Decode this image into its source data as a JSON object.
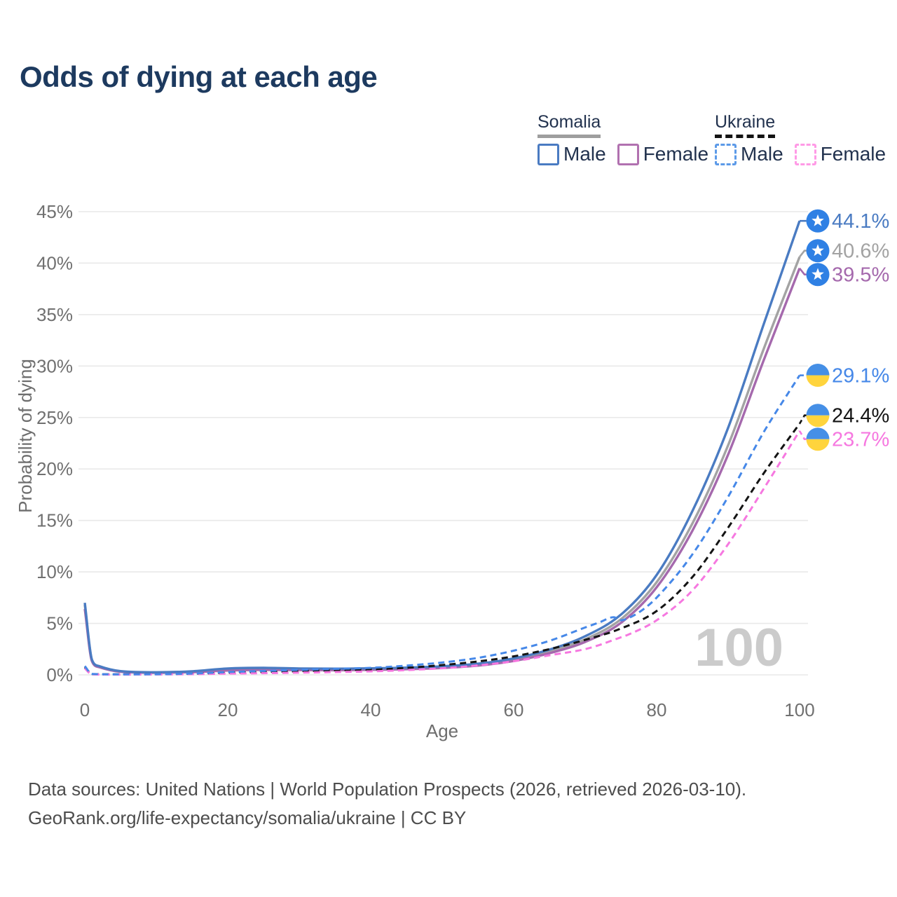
{
  "title": "Odds of dying at each age",
  "colors": {
    "title_text": "#1d3a5f",
    "legend_text": "#22324e",
    "axis_text": "#707070",
    "grid": "#e9e9e9",
    "watermark": "#cbcbcb",
    "footer_text": "#4d4d4d",
    "somalia_flag_blue": "#2f80e4",
    "ukraine_flag_blue": "#458fe6",
    "ukraine_flag_yellow": "#ffd43d"
  },
  "legend": {
    "groups": [
      {
        "name": "Somalia",
        "line_style": "solid",
        "line_color": "#9e9e9e",
        "items": [
          {
            "label": "Male",
            "color": "#4a7bc2",
            "style": "solid"
          },
          {
            "label": "Female",
            "color": "#b171b0",
            "style": "solid"
          }
        ]
      },
      {
        "name": "Ukraine",
        "line_style": "dashed",
        "line_color": "#141414",
        "items": [
          {
            "label": "Male",
            "color": "#5c9ae8",
            "style": "dashed"
          },
          {
            "label": "Female",
            "color": "#ff9ae6",
            "style": "dashed"
          }
        ]
      }
    ]
  },
  "chart_data": {
    "type": "line",
    "title": "Odds of dying at each age",
    "xlabel": "Age",
    "ylabel": "Probability of dying",
    "xlim": [
      0,
      100
    ],
    "ylim": [
      0,
      45
    ],
    "x_ticks": [
      0,
      20,
      40,
      60,
      80,
      100
    ],
    "y_ticks": [
      0,
      5,
      10,
      15,
      20,
      25,
      30,
      35,
      40,
      45
    ],
    "y_tick_suffix": "%",
    "grid": "horizontal-only",
    "legend_position": "top-right",
    "watermark": "100",
    "series": [
      {
        "id": "somalia-total",
        "name": "Somalia",
        "color": "#a3a3a3",
        "dash": false,
        "flag": "somalia",
        "end_label": "40.6%",
        "points": [
          [
            0,
            6.8
          ],
          [
            1,
            1.4
          ],
          [
            2,
            0.8
          ],
          [
            5,
            0.33
          ],
          [
            10,
            0.22
          ],
          [
            15,
            0.3
          ],
          [
            20,
            0.52
          ],
          [
            25,
            0.58
          ],
          [
            30,
            0.54
          ],
          [
            35,
            0.52
          ],
          [
            40,
            0.56
          ],
          [
            45,
            0.62
          ],
          [
            50,
            0.74
          ],
          [
            55,
            0.97
          ],
          [
            60,
            1.45
          ],
          [
            65,
            2.25
          ],
          [
            70,
            3.45
          ],
          [
            75,
            5.4
          ],
          [
            80,
            9.0
          ],
          [
            85,
            14.7
          ],
          [
            90,
            22.3
          ],
          [
            95,
            31.7
          ],
          [
            100,
            40.6
          ]
        ]
      },
      {
        "id": "somalia-female",
        "name": "Somalia Female",
        "color": "#a569ad",
        "dash": false,
        "flag": "somalia",
        "end_label": "39.5%",
        "points": [
          [
            0,
            6.4
          ],
          [
            1,
            1.33
          ],
          [
            2,
            0.75
          ],
          [
            5,
            0.3
          ],
          [
            10,
            0.2
          ],
          [
            15,
            0.26
          ],
          [
            20,
            0.42
          ],
          [
            25,
            0.48
          ],
          [
            30,
            0.46
          ],
          [
            35,
            0.45
          ],
          [
            40,
            0.49
          ],
          [
            45,
            0.55
          ],
          [
            50,
            0.67
          ],
          [
            55,
            0.9
          ],
          [
            60,
            1.35
          ],
          [
            65,
            2.1
          ],
          [
            70,
            3.2
          ],
          [
            75,
            5.05
          ],
          [
            80,
            8.5
          ],
          [
            85,
            14.0
          ],
          [
            90,
            21.4
          ],
          [
            95,
            30.6
          ],
          [
            100,
            39.5
          ]
        ]
      },
      {
        "id": "somalia-male",
        "name": "Somalia Male",
        "color": "#4a7bc2",
        "dash": false,
        "flag": "somalia",
        "end_label": "44.1%",
        "points": [
          [
            0,
            7.0
          ],
          [
            1,
            1.48
          ],
          [
            2,
            0.85
          ],
          [
            5,
            0.36
          ],
          [
            10,
            0.25
          ],
          [
            15,
            0.35
          ],
          [
            20,
            0.62
          ],
          [
            25,
            0.68
          ],
          [
            30,
            0.62
          ],
          [
            35,
            0.6
          ],
          [
            40,
            0.63
          ],
          [
            45,
            0.7
          ],
          [
            50,
            0.83
          ],
          [
            55,
            1.08
          ],
          [
            60,
            1.6
          ],
          [
            65,
            2.45
          ],
          [
            70,
            3.75
          ],
          [
            75,
            5.85
          ],
          [
            80,
            9.7
          ],
          [
            85,
            15.9
          ],
          [
            90,
            24.0
          ],
          [
            95,
            34.1
          ],
          [
            100,
            44.1
          ]
        ]
      },
      {
        "id": "ukraine-total",
        "name": "Ukraine",
        "color": "#141414",
        "dash": true,
        "flag": "ukraine",
        "end_label": "24.4%",
        "points": [
          [
            0,
            0.75
          ],
          [
            1,
            0.07
          ],
          [
            5,
            0.05
          ],
          [
            10,
            0.06
          ],
          [
            15,
            0.1
          ],
          [
            20,
            0.2
          ],
          [
            25,
            0.28
          ],
          [
            30,
            0.36
          ],
          [
            35,
            0.44
          ],
          [
            40,
            0.52
          ],
          [
            45,
            0.68
          ],
          [
            50,
            0.95
          ],
          [
            55,
            1.3
          ],
          [
            60,
            1.8
          ],
          [
            65,
            2.5
          ],
          [
            70,
            3.4
          ],
          [
            75,
            4.5
          ],
          [
            80,
            6.2
          ],
          [
            85,
            9.5
          ],
          [
            90,
            14.3
          ],
          [
            95,
            19.6
          ],
          [
            100,
            24.4
          ]
        ]
      },
      {
        "id": "ukraine-female",
        "name": "Ukraine Female",
        "color": "#f678e0",
        "dash": true,
        "flag": "ukraine",
        "end_label": "23.7%",
        "points": [
          [
            0,
            0.62
          ],
          [
            1,
            0.05
          ],
          [
            5,
            0.03
          ],
          [
            10,
            0.04
          ],
          [
            15,
            0.07
          ],
          [
            20,
            0.12
          ],
          [
            25,
            0.16
          ],
          [
            30,
            0.21
          ],
          [
            35,
            0.27
          ],
          [
            40,
            0.34
          ],
          [
            45,
            0.46
          ],
          [
            50,
            0.64
          ],
          [
            55,
            0.92
          ],
          [
            60,
            1.32
          ],
          [
            65,
            1.9
          ],
          [
            70,
            2.5
          ],
          [
            72,
            2.9
          ],
          [
            74,
            3.4
          ],
          [
            75,
            3.65
          ],
          [
            76,
            3.9
          ],
          [
            80,
            5.3
          ],
          [
            85,
            8.2
          ],
          [
            90,
            12.7
          ],
          [
            95,
            18.1
          ],
          [
            100,
            23.7
          ]
        ]
      },
      {
        "id": "ukraine-male",
        "name": "Ukraine Male",
        "color": "#4688e8",
        "dash": true,
        "flag": "ukraine",
        "end_label": "29.1%",
        "points": [
          [
            0,
            0.85
          ],
          [
            1,
            0.08
          ],
          [
            5,
            0.05
          ],
          [
            10,
            0.06
          ],
          [
            15,
            0.13
          ],
          [
            20,
            0.27
          ],
          [
            25,
            0.38
          ],
          [
            30,
            0.48
          ],
          [
            35,
            0.58
          ],
          [
            40,
            0.68
          ],
          [
            45,
            0.9
          ],
          [
            50,
            1.2
          ],
          [
            55,
            1.65
          ],
          [
            60,
            2.35
          ],
          [
            65,
            3.3
          ],
          [
            70,
            4.6
          ],
          [
            72,
            5.1
          ],
          [
            74,
            5.6
          ],
          [
            75,
            5.3
          ],
          [
            76,
            5.5
          ],
          [
            78,
            6.3
          ],
          [
            80,
            7.5
          ],
          [
            85,
            11.7
          ],
          [
            90,
            17.3
          ],
          [
            95,
            23.6
          ],
          [
            100,
            29.1
          ]
        ]
      }
    ]
  },
  "footer": {
    "line1": "Data sources: United Nations | World Population Prospects (2026, retrieved 2026-03-10).",
    "line2": "GeoRank.org/life-expectancy/somalia/ukraine | CC BY"
  }
}
